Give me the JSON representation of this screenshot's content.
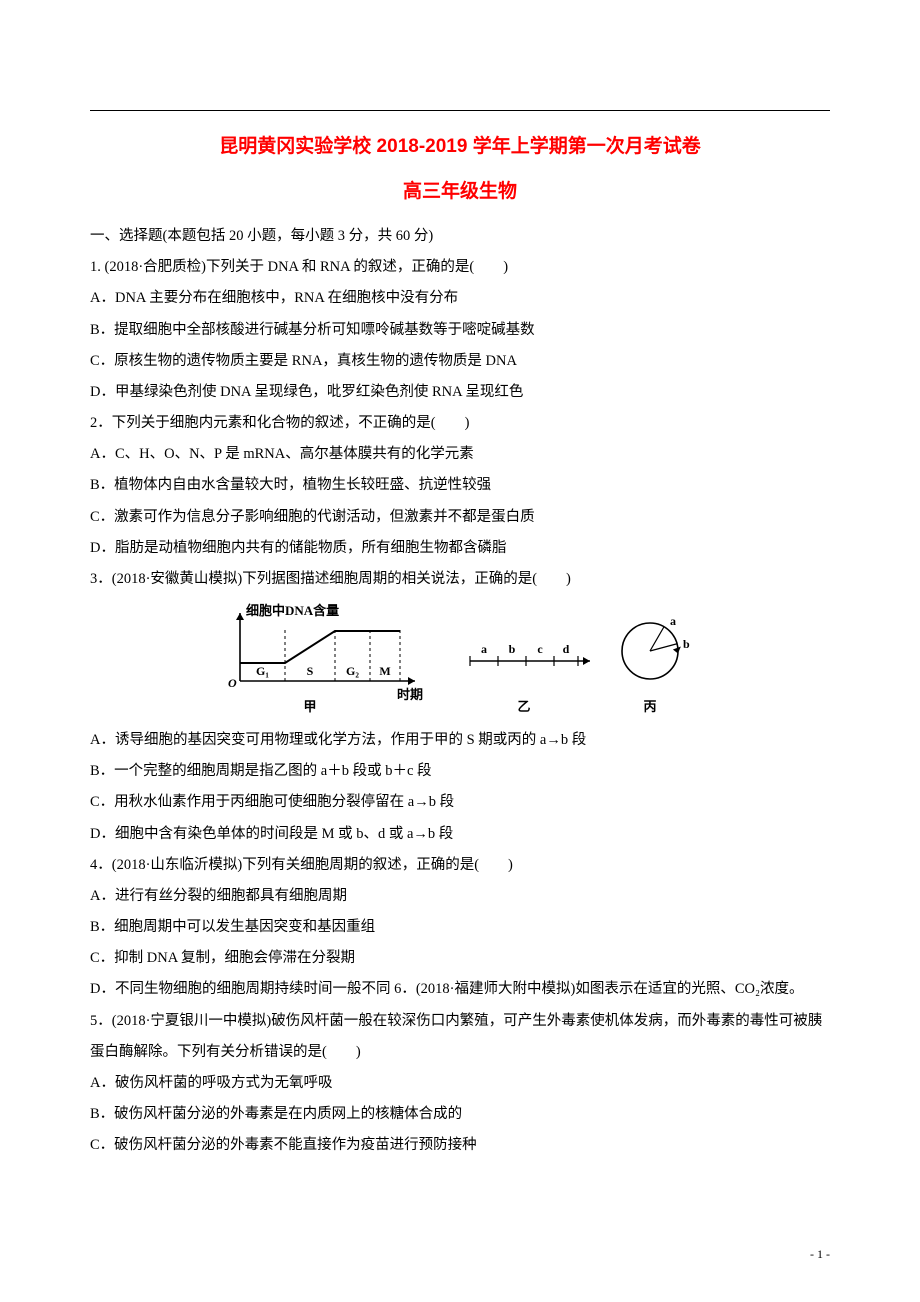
{
  "title": "昆明黄冈实验学校 2018-2019 学年上学期第一次月考试卷",
  "subtitle": "高三年级生物",
  "section_header": "一、选择题(本题包括 20 小题，每小题 3 分，共 60 分)",
  "q1": {
    "stem": "1. (2018·合肥质检)下列关于 DNA 和 RNA 的叙述，正确的是(　　)",
    "A": "A．DNA 主要分布在细胞核中，RNA 在细胞核中没有分布",
    "B": "B．提取细胞中全部核酸进行碱基分析可知嘌呤碱基数等于嘧啶碱基数",
    "C": "C．原核生物的遗传物质主要是 RNA，真核生物的遗传物质是 DNA",
    "D": "D．甲基绿染色剂使 DNA 呈现绿色，吡罗红染色剂使 RNA 呈现红色"
  },
  "q2": {
    "stem": "2．下列关于细胞内元素和化合物的叙述，不正确的是(　　)",
    "A": "A．C、H、O、N、P 是 mRNA、高尔基体膜共有的化学元素",
    "B": "B．植物体内自由水含量较大时，植物生长较旺盛、抗逆性较强",
    "C": "C．激素可作为信息分子影响细胞的代谢活动，但激素并不都是蛋白质",
    "D": "D．脂肪是动植物细胞内共有的储能物质，所有细胞生物都含磷脂"
  },
  "q3": {
    "stem": "3．(2018·安徽黄山模拟)下列据图描述细胞周期的相关说法，正确的是(　　)",
    "A": "A．诱导细胞的基因突变可用物理或化学方法，作用于甲的 S 期或丙的 a→b 段",
    "B": "B．一个完整的细胞周期是指乙图的 a＋b 段或 b＋c 段",
    "C": "C．用秋水仙素作用于丙细胞可使细胞分裂停留在 a→b 段",
    "D": "D．细胞中含有染色单体的时间段是 M 或 b、d 或 a→b 段"
  },
  "q4": {
    "stem": "4．(2018·山东临沂模拟)下列有关细胞周期的叙述，正确的是(　　)",
    "A": "A．进行有丝分裂的细胞都具有细胞周期",
    "B": "B．细胞周期中可以发生基因突变和基因重组",
    "C": "C．抑制 DNA 复制，细胞会停滞在分裂期",
    "D": "D．不同生物细胞的细胞周期持续时间一般不同 6．(2018·福建师大附中模拟)如图表示在适宜的光照、CO₂浓度。"
  },
  "q5": {
    "stem": "5．(2018·宁夏银川一中模拟)破伤风杆菌一般在较深伤口内繁殖，可产生外毒素使机体发病，而外毒素的毒性可被胰蛋白酶解除。下列有关分析错误的是(　　)",
    "A": "A．破伤风杆菌的呼吸方式为无氧呼吸",
    "B": "B．破伤风杆菌分泌的外毒素是在内质网上的核糖体合成的",
    "C": "C．破伤风杆菌分泌的外毒素不能直接作为疫苗进行预防接种"
  },
  "figure": {
    "ylabel": "细胞中DNA含量",
    "phases": [
      "G₁",
      "S",
      "G₂",
      "M"
    ],
    "xlabel_jia": "时期",
    "label_jia": "甲",
    "label_yi": "乙",
    "label_bing": "丙",
    "yi_segments": [
      "a",
      "b",
      "c",
      "d"
    ],
    "bing_labels": [
      "a",
      "b"
    ],
    "colors": {
      "stroke": "#000000",
      "text": "#000000",
      "bg": "#ffffff"
    },
    "line_width": 1.6,
    "font_size_label": 13,
    "font_size_small": 12
  },
  "page_footer": "- 1 -"
}
